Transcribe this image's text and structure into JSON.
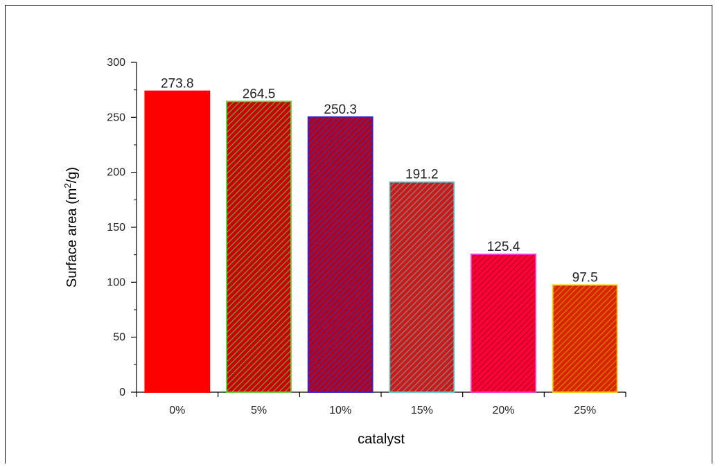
{
  "chart_data": {
    "type": "bar",
    "categories": [
      "0%",
      "5%",
      "10%",
      "15%",
      "20%",
      "25%"
    ],
    "values": [
      273.8,
      264.5,
      250.3,
      191.2,
      125.4,
      97.5
    ],
    "data_labels": [
      "273.8",
      "264.5",
      "250.3",
      "191.2",
      "125.4",
      "97.5"
    ],
    "xlabel": "catalyst",
    "ylabel": "Surface area (m",
    "ylabel_sup": "2",
    "ylabel_end": "/g)",
    "ylim": [
      0,
      300
    ],
    "yticks": [
      0,
      50,
      100,
      150,
      200,
      250,
      300
    ],
    "grid": false,
    "bar_styles": [
      {
        "fill": "#ff0000",
        "hatch": "none",
        "border": "#ff0000"
      },
      {
        "fill": "#cc0000",
        "hatch": "#66aa44",
        "border": "#66cc33"
      },
      {
        "fill": "#b00020",
        "hatch": "#4433aa",
        "border": "#3322cc"
      },
      {
        "fill": "#c81a1a",
        "hatch": "#888888",
        "border": "#66cccc"
      },
      {
        "fill": "#ff0033",
        "hatch": "#aa0033",
        "border": "#ff33cc"
      },
      {
        "fill": "#dd2200",
        "hatch": "#cc8800",
        "border": "#ffcc00"
      }
    ]
  }
}
